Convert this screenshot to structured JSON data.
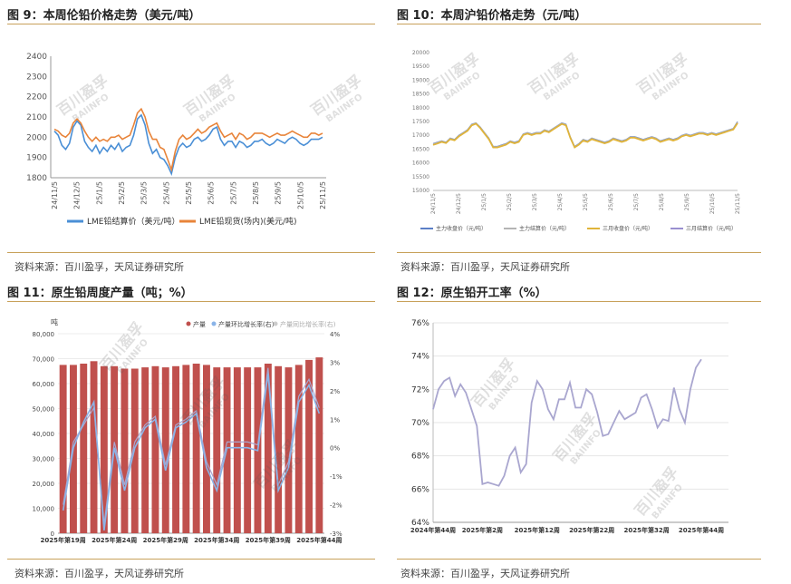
{
  "panels": {
    "p9": {
      "title": "图 9：本周伦铅价格走势（美元/吨）",
      "source": "资料来源：百川盈孚，天风证券研究所"
    },
    "p10": {
      "title": "图 10：本周沪铅价格走势（元/吨）",
      "source": "资料来源：百川盈孚，天风证券研究所"
    },
    "p11": {
      "title": "图 11：原生铅周度产量（吨；%）",
      "source": "资料来源：百川盈孚，天风证券研究所"
    },
    "p12": {
      "title": "图 12：原生铅开工率（%）",
      "source": "资料来源：百川盈孚，天风证券研究所"
    }
  },
  "watermark": {
    "cn": "百川盈孚",
    "en": "BAIINFO"
  },
  "colors": {
    "accent_rule": "#c8a15a",
    "lme_blue": "#4a8fd6",
    "lme_orange": "#e8843a",
    "shfe_blue": "#5b7fc7",
    "shfe_gray": "#b4b4b4",
    "shfe_yellow": "#e0b43a",
    "shfe_lilac": "#9a8fd0",
    "bar_red": "#c0504d",
    "line_blue": "#8ab4e8",
    "line_purple": "#a9a6cf"
  },
  "chart_data": [
    {
      "id": "lme-lead-price",
      "type": "line",
      "ylim": [
        1800,
        2400
      ],
      "yticks": [
        1800,
        1900,
        2000,
        2100,
        2200,
        2300,
        2400
      ],
      "xticks": [
        "24/11/5",
        "24/12/5",
        "25/1/5",
        "25/2/5",
        "25/3/5",
        "25/4/5",
        "25/5/5",
        "25/6/5",
        "25/7/5",
        "25/8/5",
        "25/9/5",
        "25/10/5",
        "25/11/5"
      ],
      "series": [
        {
          "name": "LME铅结算价（美元/吨）",
          "color": "#4a8fd6",
          "values": [
            2030,
            2010,
            1960,
            1940,
            1970,
            2050,
            2080,
            2060,
            1980,
            1950,
            1930,
            1960,
            1920,
            1950,
            1930,
            1960,
            1940,
            1970,
            1930,
            1950,
            1960,
            2010,
            2090,
            2110,
            2060,
            1970,
            1920,
            1940,
            1900,
            1890,
            1860,
            1820,
            1900,
            1950,
            1970,
            1950,
            1960,
            1990,
            2000,
            1980,
            1990,
            2010,
            2040,
            2050,
            1990,
            1960,
            1980,
            1980,
            1950,
            1980,
            1970,
            1950,
            1960,
            1980,
            1980,
            1990,
            1970,
            1960,
            1970,
            1990,
            1980,
            1970,
            1990,
            2000,
            1990,
            1970,
            1960,
            1970,
            1990,
            1990,
            1990,
            2000
          ]
        },
        {
          "name": "LME铅现货(场内)(美元/吨)",
          "color": "#e8843a",
          "values": [
            2040,
            2030,
            2010,
            2000,
            2020,
            2070,
            2090,
            2070,
            2030,
            2000,
            1980,
            2000,
            1980,
            1990,
            1980,
            2000,
            2000,
            2010,
            1990,
            2000,
            2010,
            2060,
            2120,
            2140,
            2100,
            2030,
            1990,
            1990,
            1950,
            1940,
            1890,
            1840,
            1930,
            1990,
            2010,
            1990,
            2000,
            2020,
            2040,
            2020,
            2030,
            2050,
            2060,
            2070,
            2030,
            2000,
            2010,
            2020,
            1990,
            2020,
            2010,
            1990,
            2000,
            2020,
            2020,
            2020,
            2010,
            2000,
            2010,
            2020,
            2010,
            2010,
            2020,
            2030,
            2020,
            2010,
            2000,
            2000,
            2020,
            2020,
            2010,
            2020
          ]
        }
      ]
    },
    {
      "id": "shfe-lead-price",
      "type": "line",
      "ylim": [
        15000,
        20000
      ],
      "yticks": [
        15000,
        15500,
        16000,
        16500,
        17000,
        17500,
        18000,
        18500,
        19000,
        19500,
        20000
      ],
      "xticks": [
        "24/11/5",
        "24/12/5",
        "25/1/5",
        "25/2/5",
        "25/3/5",
        "25/4/5",
        "25/5/5",
        "25/6/5",
        "25/7/5",
        "25/8/5",
        "25/9/5",
        "25/10/5",
        "25/11/5"
      ],
      "series": [
        {
          "name": "主力收盘价（元/吨）",
          "color": "#5b7fc7",
          "values": [
            16700,
            16750,
            16800,
            16750,
            16900,
            16850,
            17000,
            17100,
            17200,
            17400,
            17450,
            17300,
            17100,
            16900,
            16600,
            16600,
            16650,
            16700,
            16800,
            16750,
            16800,
            17050,
            17100,
            17050,
            17100,
            17100,
            17200,
            17150,
            17250,
            17350,
            17450,
            17400,
            16950,
            16600,
            16700,
            16850,
            16800,
            16900,
            16850,
            16800,
            16750,
            16800,
            16900,
            16850,
            16800,
            16850,
            16950,
            16950,
            16900,
            16850,
            16900,
            16950,
            16900,
            16800,
            16850,
            16900,
            16850,
            16900,
            17000,
            17050,
            17000,
            17050,
            17100,
            17100,
            17050,
            17100,
            17050,
            17100,
            17150,
            17200,
            17250,
            17500
          ]
        },
        {
          "name": "主力结算价（元/吨）",
          "color": "#b4b4b4",
          "values": [
            16690,
            16740,
            16790,
            16740,
            16890,
            16840,
            16990,
            17090,
            17190,
            17390,
            17440,
            17290,
            17090,
            16890,
            16590,
            16590,
            16640,
            16690,
            16790,
            16740,
            16790,
            17040,
            17090,
            17040,
            17090,
            17090,
            17190,
            17140,
            17240,
            17340,
            17440,
            17390,
            16940,
            16590,
            16690,
            16840,
            16790,
            16890,
            16840,
            16790,
            16740,
            16790,
            16890,
            16840,
            16790,
            16840,
            16940,
            16940,
            16890,
            16840,
            16890,
            16940,
            16890,
            16790,
            16840,
            16890,
            16840,
            16890,
            16990,
            17040,
            16990,
            17040,
            17090,
            17090,
            17040,
            17090,
            17040,
            17090,
            17140,
            17190,
            17240,
            17480
          ]
        },
        {
          "name": "三月收盘价（元/吨）",
          "color": "#e0b43a",
          "values": [
            16650,
            16700,
            16760,
            16720,
            16860,
            16820,
            16960,
            17060,
            17160,
            17360,
            17420,
            17260,
            17060,
            16860,
            16560,
            16560,
            16610,
            16660,
            16760,
            16710,
            16760,
            17010,
            17060,
            17010,
            17060,
            17060,
            17160,
            17110,
            17210,
            17310,
            17410,
            17360,
            16910,
            16560,
            16660,
            16810,
            16760,
            16860,
            16810,
            16760,
            16710,
            16760,
            16860,
            16810,
            16760,
            16810,
            16910,
            16910,
            16860,
            16810,
            16860,
            16910,
            16860,
            16760,
            16810,
            16860,
            16810,
            16860,
            16960,
            17010,
            16960,
            17010,
            17060,
            17060,
            17010,
            17060,
            17010,
            17060,
            17110,
            17160,
            17210,
            17440
          ]
        },
        {
          "name": "三月结算价（元/吨）",
          "color": "#9a8fd0",
          "values": [
            16660,
            16710,
            16770,
            16730,
            16870,
            16830,
            16970,
            17070,
            17170,
            17370,
            17430,
            17270,
            17070,
            16870,
            16570,
            16570,
            16620,
            16670,
            16770,
            16720,
            16770,
            17020,
            17070,
            17020,
            17070,
            17070,
            17170,
            17120,
            17220,
            17320,
            17420,
            17370,
            16920,
            16570,
            16670,
            16820,
            16770,
            16870,
            16820,
            16770,
            16720,
            16770,
            16870,
            16820,
            16770,
            16820,
            16920,
            16920,
            16870,
            16820,
            16870,
            16920,
            16870,
            16770,
            16820,
            16870,
            16820,
            16870,
            16970,
            17020,
            16970,
            17020,
            17070,
            17070,
            17020,
            17070,
            17020,
            17070,
            17120,
            17170,
            17220,
            17460
          ]
        }
      ]
    },
    {
      "id": "primary-lead-weekly-output",
      "type": "bar",
      "ylabel": "吨",
      "ylim": [
        0,
        80000
      ],
      "yticks": [
        0,
        10000,
        20000,
        30000,
        40000,
        50000,
        60000,
        70000,
        80000
      ],
      "y2lim": [
        -3,
        4
      ],
      "y2ticks": [
        "-3%",
        "-2%",
        "-1%",
        "0%",
        "1%",
        "2%",
        "3%",
        "4%"
      ],
      "xticks": [
        "2025年第19周",
        "2025年第24周",
        "2025年第29周",
        "2025年第34周",
        "2025年第39周",
        "2025年第44周"
      ],
      "legend": [
        "产量",
        "产量环比增长率(右)",
        "产量同比增长率(右)"
      ],
      "categories": [
        "19",
        "20",
        "21",
        "22",
        "23",
        "24",
        "25",
        "26",
        "27",
        "28",
        "29",
        "30",
        "31",
        "32",
        "33",
        "34",
        "35",
        "36",
        "37",
        "38",
        "39",
        "40",
        "41",
        "42",
        "43",
        "44"
      ],
      "series": [
        {
          "name": "产量",
          "type": "bar",
          "color": "#c0504d",
          "values": [
            67500,
            67500,
            68000,
            69000,
            67000,
            67000,
            66000,
            66000,
            66500,
            67000,
            66500,
            67000,
            67500,
            68000,
            67500,
            66500,
            66500,
            66500,
            66500,
            66500,
            68000,
            67000,
            66500,
            67500,
            69500,
            70500
          ]
        },
        {
          "name": "产量环比增长率(右)",
          "type": "line",
          "axis": "right",
          "color": "#8ab4e8",
          "values": [
            -2.2,
            0.0,
            0.9,
            1.6,
            -2.9,
            0.0,
            -1.5,
            0.0,
            0.7,
            1.0,
            -0.8,
            0.7,
            0.9,
            1.2,
            -0.7,
            -1.5,
            0.0,
            0.0,
            0.0,
            -0.1,
            2.6,
            -1.5,
            -0.7,
            1.6,
            2.2,
            1.2
          ]
        },
        {
          "name": "产量同比增长率(右)",
          "type": "line",
          "axis": "right",
          "color": "#a9a6cf",
          "values": [
            -2.0,
            0.2,
            0.8,
            1.4,
            -2.7,
            0.2,
            -1.3,
            0.2,
            0.8,
            1.1,
            -0.6,
            0.8,
            1.0,
            1.3,
            -0.5,
            -1.3,
            0.2,
            0.2,
            0.2,
            0.1,
            2.8,
            -1.3,
            -0.5,
            1.8,
            2.4,
            1.4
          ]
        }
      ]
    },
    {
      "id": "primary-lead-operating-rate",
      "type": "line",
      "ylim": [
        64,
        76
      ],
      "yticks": [
        "64%",
        "66%",
        "68%",
        "70%",
        "72%",
        "74%",
        "76%"
      ],
      "xticks": [
        "2024年第44周",
        "2025年第2周",
        "2025年第12周",
        "2025年第22周",
        "2025年第32周",
        "2025年第44周"
      ],
      "series": [
        {
          "name": "开工率",
          "color": "#a9a6cf",
          "values": [
            70.8,
            72.0,
            72.5,
            72.7,
            71.6,
            72.3,
            71.8,
            70.8,
            69.8,
            66.3,
            66.4,
            66.3,
            66.2,
            66.8,
            68.0,
            68.5,
            67.0,
            67.5,
            71.2,
            72.5,
            72.0,
            70.8,
            70.2,
            71.4,
            71.4,
            72.4,
            70.9,
            70.9,
            72.0,
            71.7,
            70.6,
            69.2,
            69.3,
            70.0,
            70.7,
            70.2,
            70.4,
            70.6,
            71.5,
            71.7,
            70.8,
            69.7,
            70.2,
            70.1,
            72.1,
            70.8,
            70.0,
            72.0,
            73.3,
            73.8
          ]
        }
      ]
    }
  ]
}
